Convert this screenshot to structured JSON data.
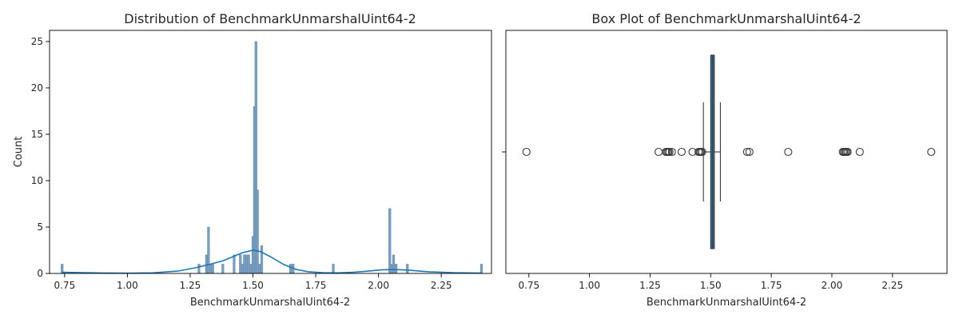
{
  "chart_data": [
    {
      "type": "histogram",
      "title": "Distribution of BenchmarkUnmarshalUint64-2",
      "xlabel": "BenchmarkUnmarshalUint64-2",
      "ylabel": "Count",
      "xlim": [
        0.69,
        2.45
      ],
      "ylim": [
        0,
        26.2
      ],
      "xticks": [
        0.75,
        1.0,
        1.25,
        1.5,
        1.75,
        2.0,
        2.25
      ],
      "xtick_labels": [
        "0.75",
        "1.00",
        "1.25",
        "1.50",
        "1.75",
        "2.00",
        "2.25"
      ],
      "yticks": [
        0,
        5,
        10,
        15,
        20,
        25
      ],
      "ytick_labels": [
        "0",
        "5",
        "10",
        "15",
        "20",
        "25"
      ],
      "bin_width": 0.0085,
      "bars": [
        {
          "x": 0.74,
          "count": 1
        },
        {
          "x": 1.285,
          "count": 1
        },
        {
          "x": 1.315,
          "count": 2
        },
        {
          "x": 1.323,
          "count": 5
        },
        {
          "x": 1.331,
          "count": 1
        },
        {
          "x": 1.34,
          "count": 1
        },
        {
          "x": 1.38,
          "count": 1
        },
        {
          "x": 1.425,
          "count": 2
        },
        {
          "x": 1.45,
          "count": 2
        },
        {
          "x": 1.458,
          "count": 1
        },
        {
          "x": 1.466,
          "count": 2
        },
        {
          "x": 1.475,
          "count": 2
        },
        {
          "x": 1.483,
          "count": 2
        },
        {
          "x": 1.491,
          "count": 1
        },
        {
          "x": 1.5,
          "count": 4
        },
        {
          "x": 1.506,
          "count": 18
        },
        {
          "x": 1.512,
          "count": 25
        },
        {
          "x": 1.518,
          "count": 9
        },
        {
          "x": 1.526,
          "count": 1
        },
        {
          "x": 1.535,
          "count": 3
        },
        {
          "x": 1.65,
          "count": 1
        },
        {
          "x": 1.66,
          "count": 1
        },
        {
          "x": 1.82,
          "count": 1
        },
        {
          "x": 2.045,
          "count": 7
        },
        {
          "x": 2.052,
          "count": 1
        },
        {
          "x": 2.06,
          "count": 2
        },
        {
          "x": 2.07,
          "count": 1
        },
        {
          "x": 2.115,
          "count": 1
        },
        {
          "x": 2.41,
          "count": 1
        }
      ],
      "kde": [
        {
          "x": 0.74,
          "y": 0.12
        },
        {
          "x": 0.9,
          "y": 0.05
        },
        {
          "x": 1.0,
          "y": 0.03
        },
        {
          "x": 1.1,
          "y": 0.06
        },
        {
          "x": 1.2,
          "y": 0.25
        },
        {
          "x": 1.27,
          "y": 0.6
        },
        {
          "x": 1.33,
          "y": 1.0
        },
        {
          "x": 1.38,
          "y": 1.35
        },
        {
          "x": 1.42,
          "y": 1.8
        },
        {
          "x": 1.46,
          "y": 2.25
        },
        {
          "x": 1.5,
          "y": 2.5
        },
        {
          "x": 1.53,
          "y": 2.35
        },
        {
          "x": 1.57,
          "y": 1.8
        },
        {
          "x": 1.62,
          "y": 1.0
        },
        {
          "x": 1.67,
          "y": 0.45
        },
        {
          "x": 1.72,
          "y": 0.18
        },
        {
          "x": 1.78,
          "y": 0.08
        },
        {
          "x": 1.84,
          "y": 0.06
        },
        {
          "x": 1.9,
          "y": 0.12
        },
        {
          "x": 1.96,
          "y": 0.25
        },
        {
          "x": 2.01,
          "y": 0.38
        },
        {
          "x": 2.06,
          "y": 0.42
        },
        {
          "x": 2.12,
          "y": 0.35
        },
        {
          "x": 2.2,
          "y": 0.18
        },
        {
          "x": 2.3,
          "y": 0.08
        },
        {
          "x": 2.41,
          "y": 0.04
        }
      ],
      "colors": {
        "bar_fill": "#7a9fc0",
        "bar_stroke": "#5f86ad",
        "kde": "#1f77b4"
      }
    },
    {
      "type": "box",
      "title": "Box Plot of BenchmarkUnmarshalUint64-2",
      "xlabel": "BenchmarkUnmarshalUint64-2",
      "xlim": [
        0.655,
        2.475
      ],
      "xticks": [
        0.75,
        1.0,
        1.25,
        1.5,
        1.75,
        2.0,
        2.25
      ],
      "xtick_labels": [
        "0.75",
        "1.00",
        "1.25",
        "1.50",
        "1.75",
        "2.00",
        "2.25"
      ],
      "box": {
        "q1": 1.5,
        "median": 1.508,
        "q3": 1.515,
        "whisker_low": 1.47,
        "whisker_high": 1.54
      },
      "fliers": [
        0.74,
        1.285,
        1.315,
        1.32,
        1.325,
        1.33,
        1.34,
        1.38,
        1.425,
        1.45,
        1.455,
        1.46,
        1.465,
        1.65,
        1.66,
        1.82,
        2.045,
        2.05,
        2.055,
        2.06,
        2.065,
        2.115,
        2.41
      ],
      "colors": {
        "box_fill": "#2e6f98",
        "line": "#3a3a3a"
      }
    }
  ]
}
